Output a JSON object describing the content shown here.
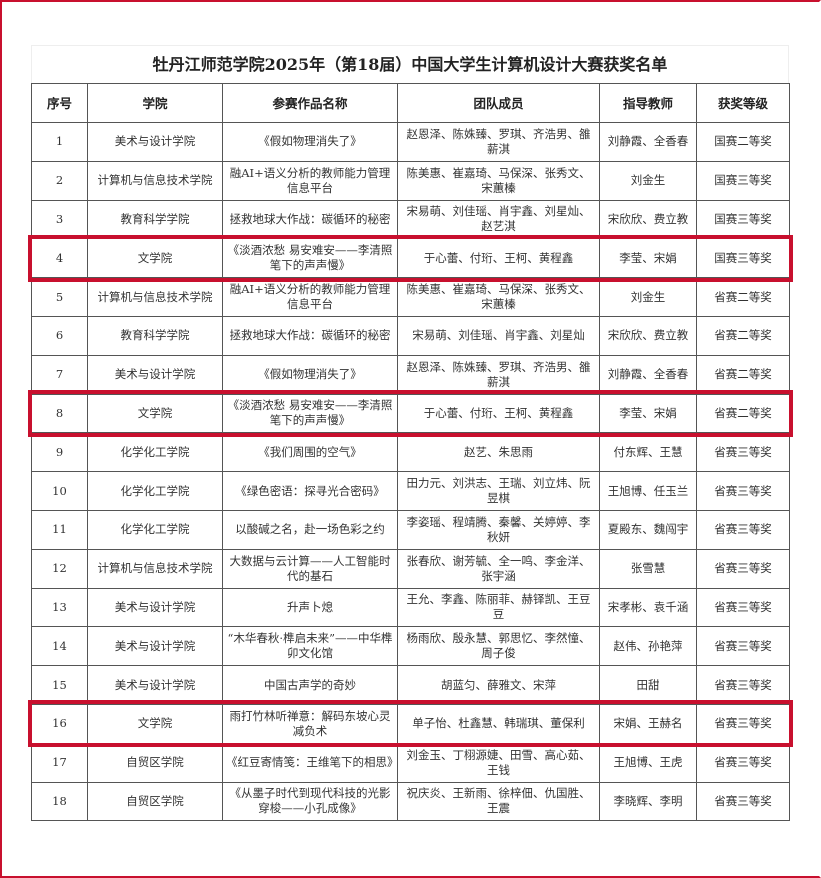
{
  "title": "牡丹江师范学院2025年（第18届）中国大学生计算机设计大赛获奖名单",
  "highlight_color": "#c8102e",
  "headers": [
    "序号",
    "学院",
    "参赛作品名称",
    "团队成员",
    "指导教师",
    "获奖等级"
  ],
  "rows": [
    [
      "1",
      "美术与设计学院",
      "《假如物理消失了》",
      "赵恩泽、陈姝臻、罗琪、齐浩男、雒薪淇",
      "刘静霞、全香春",
      "国赛二等奖"
    ],
    [
      "2",
      "计算机与信息技术学院",
      "融AI+语义分析的教师能力管理信息平台",
      "陈美惠、崔嘉琦、马保深、张秀文、宋蕙榛",
      "刘金生",
      "国赛三等奖"
    ],
    [
      "3",
      "教育科学学院",
      "拯救地球大作战：碳循环的秘密",
      "宋易萌、刘佳瑶、肖宇鑫、刘星灿、赵艺淇",
      "宋欣欣、费立教",
      "国赛三等奖"
    ],
    [
      "4",
      "文学院",
      "《淡酒浓愁 易安难安——李清照笔下的声声慢》",
      "于心蕾、付珩、王柯、黄程鑫",
      "李莹、宋娟",
      "国赛三等奖"
    ],
    [
      "5",
      "计算机与信息技术学院",
      "融AI+语义分析的教师能力管理信息平台",
      "陈美惠、崔嘉琦、马保深、张秀文、宋蕙榛",
      "刘金生",
      "省赛二等奖"
    ],
    [
      "6",
      "教育科学学院",
      "拯救地球大作战：碳循环的秘密",
      "宋易萌、刘佳瑶、肖宇鑫、刘星灿",
      "宋欣欣、费立教",
      "省赛二等奖"
    ],
    [
      "7",
      "美术与设计学院",
      "《假如物理消失了》",
      "赵恩泽、陈姝臻、罗琪、齐浩男、雒薪淇",
      "刘静霞、全香春",
      "省赛二等奖"
    ],
    [
      "8",
      "文学院",
      "《淡酒浓愁 易安难安——李清照笔下的声声慢》",
      "于心蕾、付珩、王柯、黄程鑫",
      "李莹、宋娟",
      "省赛二等奖"
    ],
    [
      "9",
      "化学化工学院",
      "《我们周围的空气》",
      "赵艺、朱思雨",
      "付东辉、王慧",
      "省赛三等奖"
    ],
    [
      "10",
      "化学化工学院",
      "《绿色密语：探寻光合密码》",
      "田力元、刘洪志、王瑞、刘立炜、阮昱棋",
      "王旭博、任玉兰",
      "省赛三等奖"
    ],
    [
      "11",
      "化学化工学院",
      "以酸碱之名，赴一场色彩之约",
      "李姿瑶、程靖腾、秦馨、关婷婷、李秋妍",
      "夏殿东、魏闯宇",
      "省赛三等奖"
    ],
    [
      "12",
      "计算机与信息技术学院",
      "大数据与云计算——人工智能时代的基石",
      "张春欣、谢芳毓、全一鸣、李金洋、张宇涵",
      "张雪慧",
      "省赛三等奖"
    ],
    [
      "13",
      "美术与设计学院",
      "升声卜熄",
      "王允、李鑫、陈丽菲、赫铎凯、王豆豆",
      "宋孝彬、袁千涵",
      "省赛三等奖"
    ],
    [
      "14",
      "美术与设计学院",
      "“木华春秋·榫启未来”——中华榫卯文化馆",
      "杨雨欣、殷永慧、郭思忆、李然憧、周子俊",
      "赵伟、孙艳萍",
      "省赛三等奖"
    ],
    [
      "15",
      "美术与设计学院",
      "中国古声学的奇妙",
      "胡蓝匀、薛雅文、宋萍",
      "田甜",
      "省赛三等奖"
    ],
    [
      "16",
      "文学院",
      "雨打竹林听禅意：解码东坡心灵减负术",
      "单子怡、杜鑫慧、韩瑞琪、董保利",
      "宋娟、王赫名",
      "省赛三等奖"
    ],
    [
      "17",
      "自贸区学院",
      "《红豆寄情笺：王维笔下的相思》",
      "刘金玉、丁栩源婕、田雪、高心茹、王钱",
      "王旭博、王虎",
      "省赛三等奖"
    ],
    [
      "18",
      "自贸区学院",
      "《从墨子时代到现代科技的光影穿梭——小孔成像》",
      "祝庆炎、王新雨、徐梓佃、仇国胜、王震",
      "李晓辉、李明",
      "省赛三等奖"
    ]
  ],
  "highlighted_rows": [
    "4",
    "8",
    "16"
  ]
}
